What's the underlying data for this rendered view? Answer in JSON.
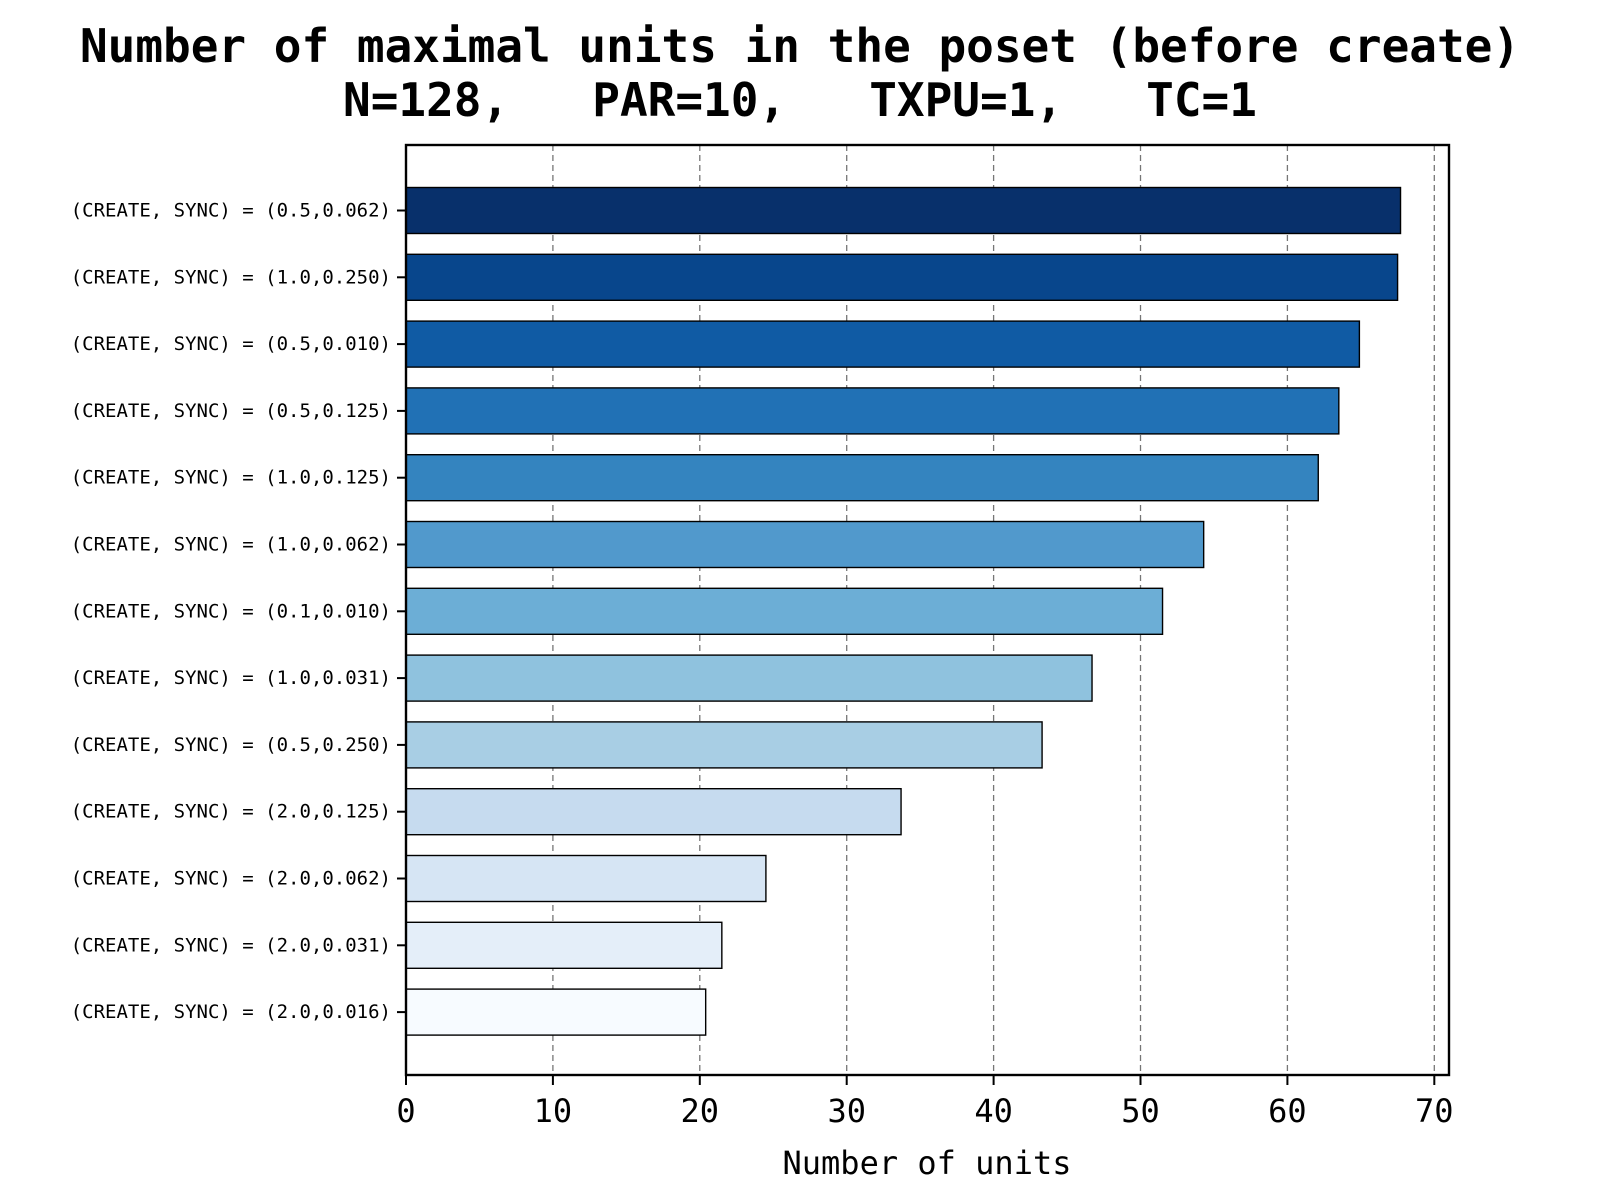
{
  "chart_data": {
    "type": "bar",
    "orientation": "horizontal",
    "title": "Number of maximal units in the poset (before create)",
    "subtitle": "N=128,   PAR=10,   TXPU=1,   TC=1",
    "xlabel": "Number of units",
    "ylabel": "",
    "xlim": [
      0,
      71
    ],
    "xticks": [
      0,
      10,
      20,
      30,
      40,
      50,
      60,
      70
    ],
    "grid": "vertical dashed",
    "categories": [
      "(CREATE, SYNC) = (0.5,0.062)",
      "(CREATE, SYNC) = (1.0,0.250)",
      "(CREATE, SYNC) = (0.5,0.010)",
      "(CREATE, SYNC) = (0.5,0.125)",
      "(CREATE, SYNC) = (1.0,0.125)",
      "(CREATE, SYNC) = (1.0,0.062)",
      "(CREATE, SYNC) = (0.1,0.010)",
      "(CREATE, SYNC) = (1.0,0.031)",
      "(CREATE, SYNC) = (0.5,0.250)",
      "(CREATE, SYNC) = (2.0,0.125)",
      "(CREATE, SYNC) = (2.0,0.062)",
      "(CREATE, SYNC) = (2.0,0.031)",
      "(CREATE, SYNC) = (2.0,0.016)"
    ],
    "values": [
      67.7,
      67.5,
      64.9,
      63.5,
      62.1,
      54.3,
      51.5,
      46.7,
      43.3,
      33.7,
      24.5,
      21.5,
      20.4
    ],
    "colors": [
      "#08306b",
      "#08468c",
      "#105ba4",
      "#2171b5",
      "#3484bf",
      "#5199cc",
      "#6caed6",
      "#8fc2de",
      "#a8cee4",
      "#c6dbef",
      "#d6e5f4",
      "#e4eef9",
      "#f7fbff"
    ]
  }
}
